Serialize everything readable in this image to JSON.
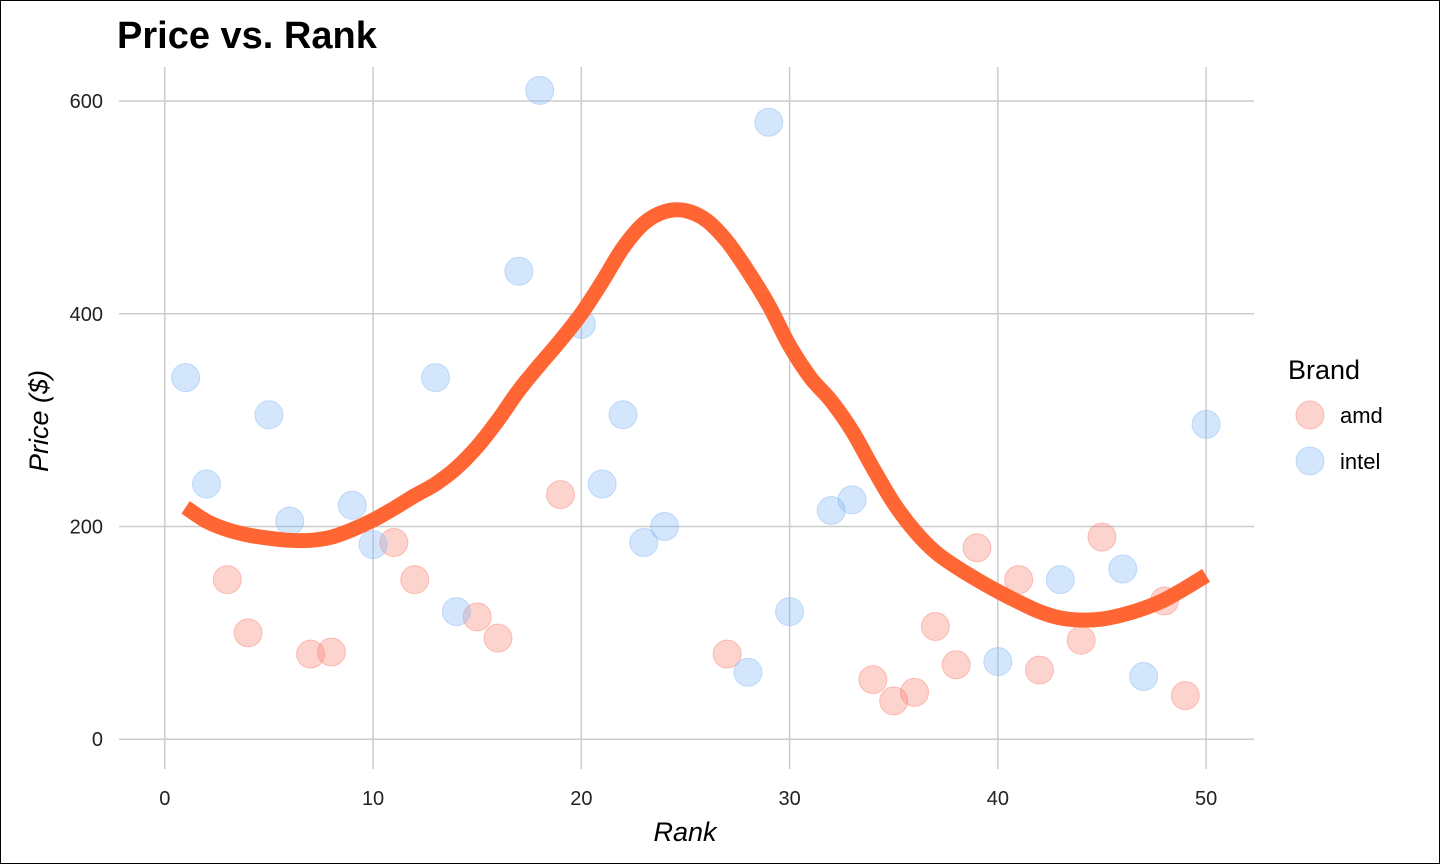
{
  "chart_data": {
    "type": "scatter",
    "title": "Price vs. Rank",
    "xlabel": "Rank",
    "ylabel": "Price ($)",
    "xlim": [
      -2.2,
      52.3
    ],
    "ylim": [
      -28,
      632
    ],
    "x_ticks": [
      0,
      10,
      20,
      30,
      40,
      50
    ],
    "y_ticks": [
      0,
      200,
      400,
      600
    ],
    "grid": true,
    "legend": {
      "title": "Brand",
      "placement": "right"
    },
    "series": [
      {
        "name": "amd",
        "color": "#FA8072",
        "points": [
          [
            3,
            150
          ],
          [
            4,
            100
          ],
          [
            7,
            80
          ],
          [
            8,
            82
          ],
          [
            11,
            185
          ],
          [
            12,
            150
          ],
          [
            15,
            115
          ],
          [
            16,
            95
          ],
          [
            19,
            230
          ],
          [
            27,
            80
          ],
          [
            34,
            56
          ],
          [
            35,
            36
          ],
          [
            36,
            44
          ],
          [
            37,
            106
          ],
          [
            38,
            70
          ],
          [
            39,
            180
          ],
          [
            41,
            150
          ],
          [
            42,
            65
          ],
          [
            44,
            93
          ],
          [
            45,
            190
          ],
          [
            48,
            130
          ],
          [
            49,
            41
          ]
        ]
      },
      {
        "name": "intel",
        "color": "#85B8F7",
        "points": [
          [
            1,
            340
          ],
          [
            2,
            240
          ],
          [
            5,
            305
          ],
          [
            6,
            205
          ],
          [
            9,
            220
          ],
          [
            10,
            183
          ],
          [
            13,
            340
          ],
          [
            14,
            120
          ],
          [
            17,
            440
          ],
          [
            18,
            610
          ],
          [
            20,
            390
          ],
          [
            21,
            240
          ],
          [
            22,
            305
          ],
          [
            23,
            185
          ],
          [
            24,
            200
          ],
          [
            28,
            63
          ],
          [
            29,
            580
          ],
          [
            30,
            120
          ],
          [
            32,
            215
          ],
          [
            33,
            225
          ],
          [
            40,
            73
          ],
          [
            43,
            150
          ],
          [
            46,
            160
          ],
          [
            47,
            59
          ],
          [
            50,
            296
          ]
        ]
      }
    ],
    "trend_line": {
      "method": "smooth",
      "color": "#FF6633",
      "points": [
        [
          1,
          218
        ],
        [
          2,
          205
        ],
        [
          3,
          197
        ],
        [
          4,
          192
        ],
        [
          5,
          189
        ],
        [
          6,
          187
        ],
        [
          7,
          187
        ],
        [
          8,
          190
        ],
        [
          9,
          197
        ],
        [
          10,
          206
        ],
        [
          11,
          217
        ],
        [
          12,
          229
        ],
        [
          13,
          240
        ],
        [
          14,
          255
        ],
        [
          15,
          275
        ],
        [
          16,
          300
        ],
        [
          17,
          328
        ],
        [
          18,
          352
        ],
        [
          19,
          375
        ],
        [
          20,
          400
        ],
        [
          21,
          430
        ],
        [
          22,
          462
        ],
        [
          23,
          485
        ],
        [
          24,
          496
        ],
        [
          25,
          497
        ],
        [
          26,
          488
        ],
        [
          27,
          468
        ],
        [
          28,
          440
        ],
        [
          29,
          408
        ],
        [
          30,
          370
        ],
        [
          31,
          340
        ],
        [
          32,
          318
        ],
        [
          33,
          290
        ],
        [
          34,
          255
        ],
        [
          35,
          222
        ],
        [
          36,
          196
        ],
        [
          37,
          176
        ],
        [
          38,
          162
        ],
        [
          39,
          150
        ],
        [
          40,
          139
        ],
        [
          41,
          129
        ],
        [
          42,
          120
        ],
        [
          43,
          114
        ],
        [
          44,
          112
        ],
        [
          45,
          113
        ],
        [
          46,
          117
        ],
        [
          47,
          123
        ],
        [
          48,
          131
        ],
        [
          49,
          142
        ],
        [
          50,
          154
        ]
      ]
    }
  }
}
